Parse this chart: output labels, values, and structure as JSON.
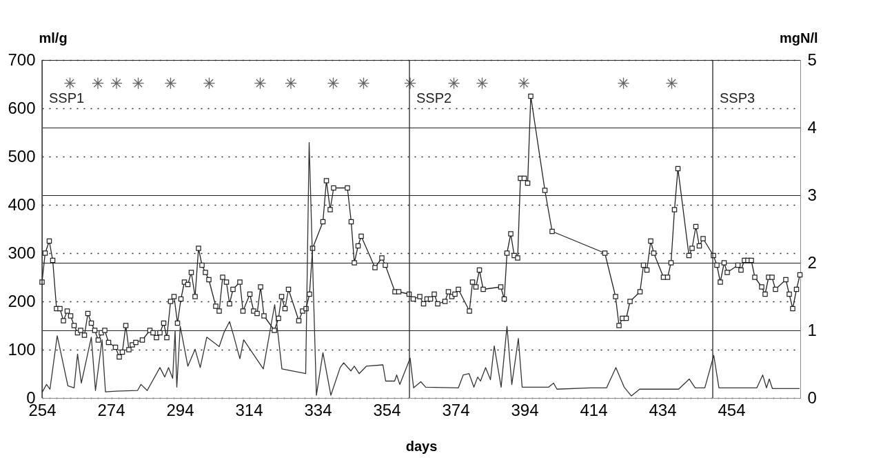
{
  "chart_data": {
    "type": "line",
    "xlabel": "days",
    "ylabel": "ml/g",
    "y2label": "mgN/l",
    "xlim": [
      254,
      474
    ],
    "xticks": [
      254,
      274,
      294,
      314,
      334,
      354,
      374,
      394,
      414,
      434,
      454
    ],
    "ylim": [
      0,
      700
    ],
    "yticks": [
      0,
      100,
      200,
      300,
      400,
      500,
      600,
      700
    ],
    "y2lim": [
      0,
      5
    ],
    "y2ticks": [
      0,
      1,
      2,
      3,
      4,
      5
    ],
    "grid": "y",
    "ref_lines": [
      {
        "axis": "x",
        "value": 254,
        "label": "SSP1"
      },
      {
        "axis": "x",
        "value": 360.6,
        "label": "SSP2"
      },
      {
        "axis": "x",
        "value": 448.6,
        "label": "SSP3"
      }
    ],
    "series": [
      {
        "marker": "square",
        "axis": "y",
        "color": "#222222",
        "x": [
          254.0,
          254.9,
          256.1,
          257.1,
          258.2,
          259.2,
          260.2,
          261.3,
          262.3,
          263.3,
          264.3,
          265.2,
          266.3,
          267.3,
          268.3,
          269.3,
          270.3,
          271.2,
          272.2,
          273.3,
          275.3,
          276.4,
          277.3,
          278.3,
          279.2,
          280.2,
          281.2,
          283.1,
          285.3,
          286.2,
          287.2,
          288.2,
          289.3,
          290.2,
          291.3,
          292.3,
          293.3,
          294.3,
          295.3,
          296.3,
          297.3,
          298.4,
          299.4,
          300.4,
          301.4,
          302.4,
          304.4,
          305.4,
          306.4,
          307.5,
          308.4,
          309.4,
          311.4,
          312.3,
          314.3,
          315.4,
          316.4,
          317.4,
          318.4,
          321.4,
          322.6,
          323.5,
          324.5,
          325.5,
          328.5,
          329.6,
          330.6,
          331.6,
          332.5,
          335.5,
          336.5,
          337.6,
          338.6,
          342.6,
          343.7,
          344.6,
          345.7,
          346.6,
          350.6,
          352.6,
          353.6,
          356.4,
          357.5,
          360.5,
          361.7,
          363.6,
          364.7,
          365.7,
          366.7,
          367.8,
          368.8,
          370.9,
          371.9,
          372.9,
          373.8,
          374.8,
          378.0,
          378.9,
          379.9,
          380.9,
          382.0,
          387.1,
          388.1,
          388.9,
          390.0,
          391.0,
          392.0,
          392.8,
          393.9,
          394.9,
          395.8,
          399.9,
          402.0,
          417.3,
          420.4,
          421.4,
          422.4,
          423.5,
          424.6,
          427.5,
          428.5,
          429.5,
          430.6,
          431.5,
          434.3,
          435.5,
          436.5,
          437.5,
          438.5,
          441.7,
          442.6,
          443.7,
          444.7,
          445.8,
          448.8,
          449.8,
          450.8,
          451.9,
          452.8,
          455.9,
          456.8,
          457.8,
          458.8,
          459.8,
          460.8,
          462.8,
          463.8,
          464.8,
          465.8,
          466.8,
          469.8,
          470.8,
          471.8,
          472.9,
          473.9
        ],
        "values": [
          240,
          300,
          325,
          285,
          185,
          185,
          160,
          180,
          170,
          150,
          135,
          140,
          130,
          175,
          155,
          140,
          120,
          135,
          140,
          115,
          105,
          85,
          95,
          150,
          100,
          110,
          115,
          120,
          140,
          135,
          125,
          135,
          155,
          125,
          200,
          210,
          155,
          205,
          240,
          235,
          260,
          210,
          310,
          275,
          260,
          245,
          190,
          180,
          250,
          240,
          195,
          225,
          240,
          180,
          215,
          180,
          175,
          230,
          170,
          140,
          165,
          210,
          185,
          225,
          160,
          180,
          185,
          215,
          310,
          365,
          450,
          390,
          435,
          435,
          365,
          280,
          315,
          335,
          270,
          290,
          275,
          220,
          220,
          215,
          205,
          210,
          195,
          205,
          205,
          215,
          195,
          200,
          220,
          210,
          215,
          225,
          180,
          240,
          230,
          265,
          225,
          230,
          205,
          300,
          340,
          295,
          290,
          455,
          455,
          445,
          625,
          430,
          345,
          300,
          210,
          150,
          165,
          165,
          200,
          220,
          275,
          265,
          325,
          300,
          250,
          250,
          280,
          390,
          475,
          295,
          310,
          355,
          315,
          330,
          295,
          275,
          240,
          280,
          260,
          275,
          265,
          285,
          285,
          285,
          250,
          230,
          215,
          250,
          250,
          225,
          245,
          215,
          185,
          225,
          255
        ]
      },
      {
        "marker": "none",
        "axis": "y2",
        "color": "#333333",
        "x": [
          254.0,
          255.3,
          256.3,
          258.4,
          261.5,
          263.3,
          264.3,
          265.4,
          268.3,
          269.5,
          271.4,
          272.4,
          275.5,
          281.7,
          282.7,
          284.5,
          288.2,
          289.6,
          290.7,
          291.9,
          292.6,
          293.1,
          294.1,
          296.3,
          298.4,
          299.9,
          301.8,
          305.4,
          306.8,
          308.4,
          309.6,
          311.4,
          312.5,
          318.2,
          321.5,
          323.6,
          330.5,
          331.5,
          333.6,
          335.5,
          337.8,
          340.5,
          341.5,
          343.6,
          344.6,
          346.0,
          348.1,
          352.9,
          353.7,
          356.3,
          356.9,
          357.8,
          360.8,
          361.8,
          363.9,
          365.3,
          374.8,
          376.2,
          377.9,
          379.3,
          380.4,
          381.2,
          382.7,
          384.1,
          385.2,
          387.2,
          388.9,
          390.3,
          392.2,
          393.3,
          401.0,
          402.4,
          403.4,
          413.1,
          417.8,
          420.5,
          422.9,
          425.0,
          427.4,
          438.7,
          441.8,
          443.5,
          446.3,
          448.9,
          450.4,
          461.4,
          463.1,
          464.2,
          465.0,
          465.9,
          473.8
        ],
        "values": [
          0.08,
          0.2,
          0.13,
          0.92,
          0.18,
          0.15,
          0.65,
          0.22,
          0.9,
          0.11,
          0.86,
          0.09,
          0.1,
          0.11,
          0.2,
          0.11,
          0.45,
          0.31,
          0.45,
          0.29,
          0.99,
          0.16,
          1.06,
          0.47,
          0.72,
          0.45,
          0.9,
          0.76,
          0.97,
          1.13,
          0.92,
          0.58,
          0.86,
          0.43,
          1.38,
          0.43,
          0.36,
          3.78,
          0.04,
          0.67,
          0.04,
          0.45,
          0.52,
          0.4,
          0.47,
          0.36,
          0.47,
          0.49,
          0.25,
          0.25,
          0.34,
          0.2,
          0.59,
          0.15,
          0.24,
          0.16,
          0.15,
          0.34,
          0.36,
          0.16,
          0.31,
          0.25,
          0.45,
          0.27,
          0.77,
          0.16,
          1.06,
          0.2,
          0.88,
          0.16,
          0.16,
          0.22,
          0.13,
          0.15,
          0.15,
          0.45,
          0.16,
          0.03,
          0.13,
          0.13,
          0.28,
          0.15,
          0.15,
          0.63,
          0.15,
          0.15,
          0.34,
          0.15,
          0.28,
          0.14,
          0.14
        ]
      },
      {
        "type": "scatter",
        "marker": "cross",
        "axis": "y",
        "color": "#222222",
        "x": [
          262.1,
          270.2,
          275.6,
          281.9,
          291.3,
          302.5,
          317.3,
          326.2,
          338.5,
          347.3,
          360.8,
          373.5,
          381.7,
          393.8,
          422.7,
          436.7
        ],
        "values": [
          652,
          652,
          652,
          652,
          652,
          652,
          652,
          652,
          652,
          652,
          652,
          652,
          652,
          652,
          652,
          652
        ]
      }
    ]
  }
}
